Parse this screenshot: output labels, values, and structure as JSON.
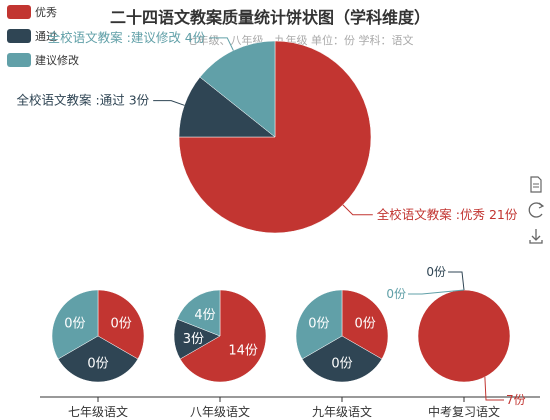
{
  "header": {
    "title": "二十四语文教案质量统计饼状图（学科维度）",
    "subtitle": "七年级、八年级、九年级    单位：份    学科：语文"
  },
  "legend": {
    "items": [
      {
        "label": "优秀",
        "color": "#c23531"
      },
      {
        "label": "通过",
        "color": "#2f4554"
      },
      {
        "label": "建议修改",
        "color": "#61a0a8"
      }
    ]
  },
  "toolbox": {
    "items": [
      {
        "name": "save-as-image-icon"
      },
      {
        "name": "restore-icon"
      },
      {
        "name": "download-icon"
      }
    ]
  },
  "colors": {
    "excellent": "#c23531",
    "pass": "#2f4554",
    "revise": "#61a0a8",
    "axis": "#333333"
  },
  "chart_data": {
    "type": "pie",
    "main": {
      "name": "全校语文教案",
      "categories": [
        "优秀",
        "通过",
        "建议修改"
      ],
      "values": [
        21,
        3,
        4
      ],
      "labels": [
        "全校语文教案 :优秀  21份",
        "全校语文教案 :通过  3份",
        "全校语文教案 :建议修改  4份"
      ]
    },
    "small": [
      {
        "name": "七年级语文",
        "values": [
          0,
          0,
          0
        ],
        "labels": [
          "0份",
          "0份",
          "0份"
        ]
      },
      {
        "name": "八年级语文",
        "values": [
          14,
          3,
          4
        ],
        "labels": [
          "14份",
          "3份",
          "4份"
        ]
      },
      {
        "name": "九年级语文",
        "values": [
          0,
          0,
          0
        ],
        "labels": [
          "0份",
          "0份",
          "0份"
        ]
      },
      {
        "name": "中考复习语文",
        "values": [
          7,
          0,
          0
        ],
        "labels": [
          "7份",
          "0份",
          "0份"
        ]
      }
    ]
  }
}
